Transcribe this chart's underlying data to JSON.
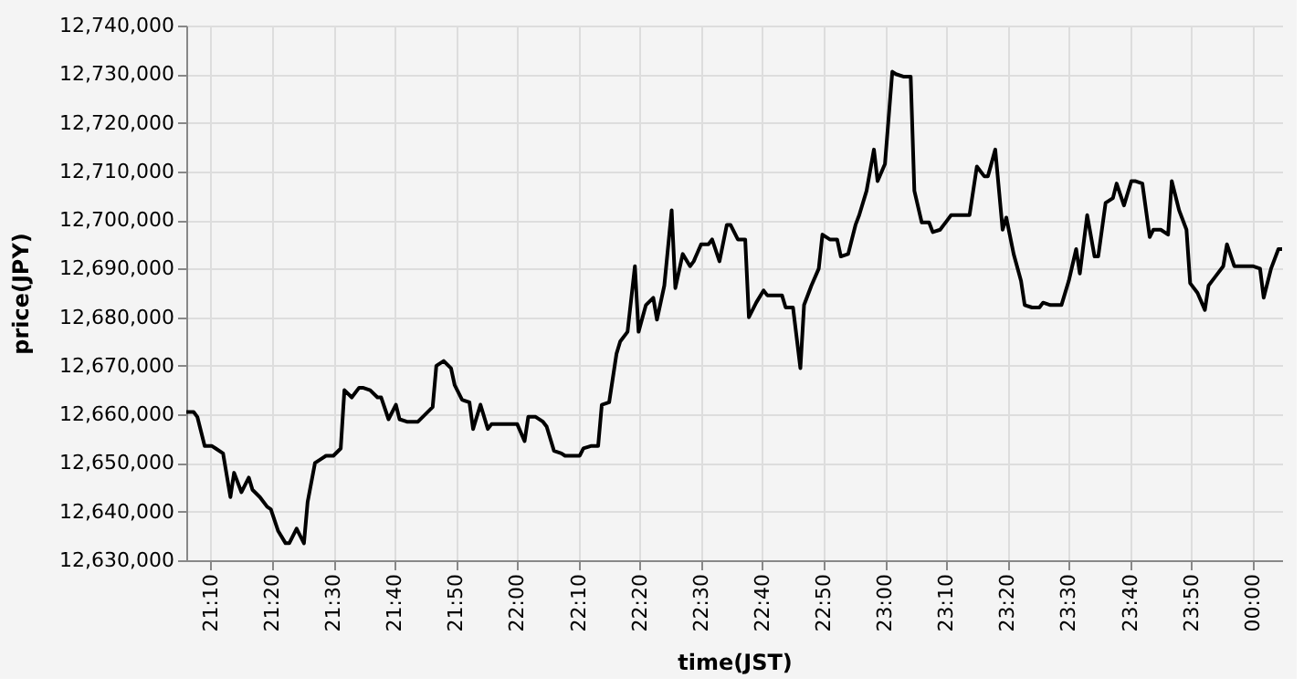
{
  "chart_data": {
    "type": "line",
    "xlabel": "time(JST)",
    "ylabel": "price(JPY)",
    "xlim": [
      21.1,
      24.08
    ],
    "ylim": [
      12630000,
      12740000
    ],
    "xticks": [
      {
        "value": 21.1667,
        "label": "21:10"
      },
      {
        "value": 21.3333,
        "label": "21:20"
      },
      {
        "value": 21.5,
        "label": "21:30"
      },
      {
        "value": 21.6667,
        "label": "21:40"
      },
      {
        "value": 21.8333,
        "label": "21:50"
      },
      {
        "value": 22.0,
        "label": "22:00"
      },
      {
        "value": 22.1667,
        "label": "22:10"
      },
      {
        "value": 22.3333,
        "label": "22:20"
      },
      {
        "value": 22.5,
        "label": "22:30"
      },
      {
        "value": 22.6667,
        "label": "22:40"
      },
      {
        "value": 22.8333,
        "label": "22:50"
      },
      {
        "value": 23.0,
        "label": "23:00"
      },
      {
        "value": 23.1667,
        "label": "23:10"
      },
      {
        "value": 23.3333,
        "label": "23:20"
      },
      {
        "value": 23.5,
        "label": "23:30"
      },
      {
        "value": 23.6667,
        "label": "23:40"
      },
      {
        "value": 23.8333,
        "label": "23:50"
      },
      {
        "value": 24.0,
        "label": "00:00"
      }
    ],
    "yticks": [
      {
        "value": 12630000,
        "label": "12,630,000"
      },
      {
        "value": 12640000,
        "label": "12,640,000"
      },
      {
        "value": 12650000,
        "label": "12,650,000"
      },
      {
        "value": 12660000,
        "label": "12,660,000"
      },
      {
        "value": 12670000,
        "label": "12,670,000"
      },
      {
        "value": 12680000,
        "label": "12,680,000"
      },
      {
        "value": 12690000,
        "label": "12,690,000"
      },
      {
        "value": 12700000,
        "label": "12,700,000"
      },
      {
        "value": 12710000,
        "label": "12,710,000"
      },
      {
        "value": 12720000,
        "label": "12,720,000"
      },
      {
        "value": 12730000,
        "label": "12,730,000"
      },
      {
        "value": 12740000,
        "label": "12,740,000"
      }
    ],
    "grid": true,
    "legend": false,
    "marker": "none",
    "line_style": "solid",
    "series": [
      {
        "color": "#000000",
        "x": [
          21.1,
          21.12,
          21.13,
          21.15,
          21.17,
          21.18,
          21.2,
          21.22,
          21.23,
          21.25,
          21.27,
          21.28,
          21.3,
          21.32,
          21.33,
          21.35,
          21.37,
          21.38,
          21.4,
          21.42,
          21.43,
          21.45,
          21.47,
          21.48,
          21.5,
          21.52,
          21.53,
          21.55,
          21.57,
          21.58,
          21.6,
          21.62,
          21.63,
          21.65,
          21.67,
          21.68,
          21.7,
          21.72,
          21.73,
          21.75,
          21.77,
          21.78,
          21.8,
          21.82,
          21.83,
          21.85,
          21.87,
          21.88,
          21.9,
          21.92,
          21.93,
          21.95,
          21.97,
          21.98,
          22.0,
          22.02,
          22.03,
          22.05,
          22.07,
          22.08,
          22.1,
          22.12,
          22.13,
          22.15,
          22.17,
          22.18,
          22.2,
          22.22,
          22.23,
          22.25,
          22.27,
          22.28,
          22.3,
          22.32,
          22.33,
          22.35,
          22.37,
          22.38,
          22.4,
          22.42,
          22.43,
          22.45,
          22.47,
          22.48,
          22.5,
          22.52,
          22.53,
          22.55,
          22.57,
          22.58,
          22.6,
          22.62,
          22.63,
          22.65,
          22.67,
          22.68,
          22.7,
          22.72,
          22.73,
          22.75,
          22.77,
          22.78,
          22.8,
          22.82,
          22.83,
          22.85,
          22.87,
          22.88,
          22.9,
          22.92,
          22.93,
          22.95,
          22.97,
          22.98,
          23.0,
          23.02,
          23.03,
          23.05,
          23.07,
          23.08,
          23.1,
          23.12,
          23.13,
          23.15,
          23.17,
          23.18,
          23.2,
          23.22,
          23.23,
          23.25,
          23.27,
          23.28,
          23.3,
          23.32,
          23.33,
          23.35,
          23.37,
          23.38,
          23.4,
          23.42,
          23.43,
          23.45,
          23.47,
          23.48,
          23.5,
          23.52,
          23.53,
          23.55,
          23.57,
          23.58,
          23.6,
          23.62,
          23.63,
          23.65,
          23.67,
          23.68,
          23.7,
          23.72,
          23.73,
          23.75,
          23.77,
          23.78,
          23.8,
          23.82,
          23.83,
          23.85,
          23.87,
          23.88,
          23.9,
          23.92,
          23.93,
          23.95,
          23.97,
          23.98,
          24.0,
          24.02,
          24.03,
          24.05,
          24.07,
          24.08
        ],
        "values": [
          12660500,
          12660500,
          12659500,
          12653500,
          12653500,
          12653000,
          12652000,
          12643000,
          12648000,
          12644000,
          12647000,
          12644500,
          12643000,
          12641000,
          12640500,
          12636000,
          12633500,
          12633500,
          12636500,
          12633500,
          12642000,
          12650000,
          12651000,
          12651500,
          12651500,
          12653000,
          12665000,
          12663500,
          12665500,
          12665500,
          12665000,
          12663500,
          12663500,
          12659000,
          12662000,
          12659000,
          12658500,
          12658500,
          12658500,
          12660000,
          12661500,
          12670000,
          12671000,
          12669500,
          12666000,
          12663000,
          12662500,
          12657000,
          12662000,
          12657000,
          12658000,
          12658000,
          12658000,
          12658000,
          12658000,
          12654500,
          12659500,
          12659500,
          12658500,
          12657500,
          12652500,
          12652000,
          12651500,
          12651500,
          12651500,
          12653000,
          12653500,
          12653500,
          12662000,
          12662500,
          12672500,
          12675000,
          12677000,
          12690500,
          12677000,
          12682500,
          12684000,
          12679500,
          12686500,
          12702000,
          12686000,
          12693000,
          12690500,
          12691500,
          12695000,
          12695000,
          12696000,
          12691500,
          12699000,
          12699000,
          12696000,
          12696000,
          12680000,
          12683000,
          12685500,
          12684500,
          12684500,
          12684500,
          12682000,
          12682000,
          12669500,
          12682500,
          12686500,
          12690000,
          12697000,
          12696000,
          12696000,
          12692500,
          12693000,
          12699000,
          12701000,
          12706000,
          12714500,
          12708000,
          12711500,
          12730500,
          12730000,
          12729500,
          12729500,
          12706000,
          12699500,
          12699500,
          12697500,
          12698000,
          12700000,
          12701000,
          12701000,
          12701000,
          12701000,
          12711000,
          12709000,
          12709000,
          12714500,
          12698000,
          12700500,
          12693000,
          12687500,
          12682500,
          12682000,
          12682000,
          12683000,
          12682500,
          12682500,
          12682500,
          12687500,
          12694000,
          12689000,
          12701000,
          12692500,
          12692500,
          12703500,
          12704500,
          12707500,
          12703000,
          12708000,
          12708000,
          12707500,
          12696500,
          12698000,
          12698000,
          12697000,
          12708000,
          12702000,
          12698000,
          12687000,
          12685000,
          12681500,
          12686500,
          12688500,
          12690500,
          12695000,
          12690500,
          12690500,
          12690500,
          12690500,
          12690000,
          12684000,
          12690000,
          12694000,
          12694000
        ]
      }
    ]
  }
}
